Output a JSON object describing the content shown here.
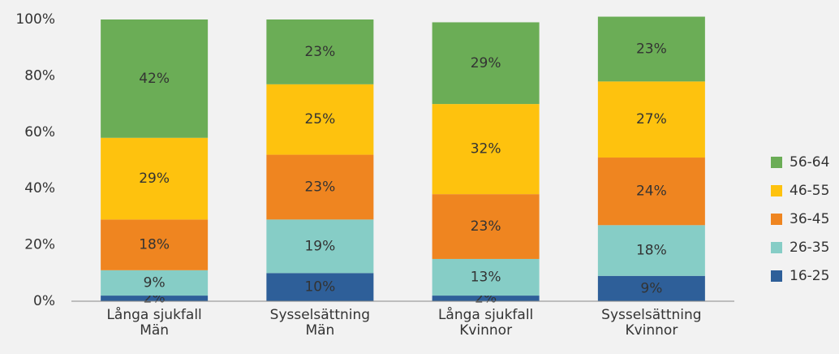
{
  "chart_data": {
    "type": "stacked_bar",
    "categories": [
      [
        "Långa sjukfall",
        "Män"
      ],
      [
        "Sysselsättning",
        "Män"
      ],
      [
        "Långa sjukfall",
        "Kvinnor"
      ],
      [
        "Sysselsättning",
        "Kvinnor"
      ]
    ],
    "series": [
      {
        "name": "16-25",
        "color": "#2e5f99",
        "values": [
          2,
          10,
          2,
          9
        ],
        "value_labels": [
          "2%",
          "10%",
          "2%",
          "9%"
        ]
      },
      {
        "name": "26-35",
        "color": "#86cdc6",
        "values": [
          9,
          19,
          13,
          18
        ],
        "value_labels": [
          "9%",
          "19%",
          "13%",
          "18%"
        ]
      },
      {
        "name": "36-45",
        "color": "#ef8520",
        "values": [
          18,
          23,
          23,
          24
        ],
        "value_labels": [
          "18%",
          "23%",
          "23%",
          "24%"
        ]
      },
      {
        "name": "46-55",
        "color": "#fec20e",
        "values": [
          29,
          25,
          32,
          27
        ],
        "value_labels": [
          "29%",
          "25%",
          "32%",
          "27%"
        ]
      },
      {
        "name": "56-64",
        "color": "#6bad56",
        "values": [
          42,
          23,
          29,
          23
        ],
        "value_labels": [
          "42%",
          "23%",
          "29%",
          "23%"
        ]
      }
    ],
    "ylim": [
      0,
      100
    ],
    "yticks": [
      {
        "value": 0,
        "label": "0%"
      },
      {
        "value": 20,
        "label": "20%"
      },
      {
        "value": 40,
        "label": "40%"
      },
      {
        "value": 60,
        "label": "60%"
      },
      {
        "value": 80,
        "label": "80%"
      },
      {
        "value": 100,
        "label": "100%"
      }
    ],
    "legend": "right"
  }
}
